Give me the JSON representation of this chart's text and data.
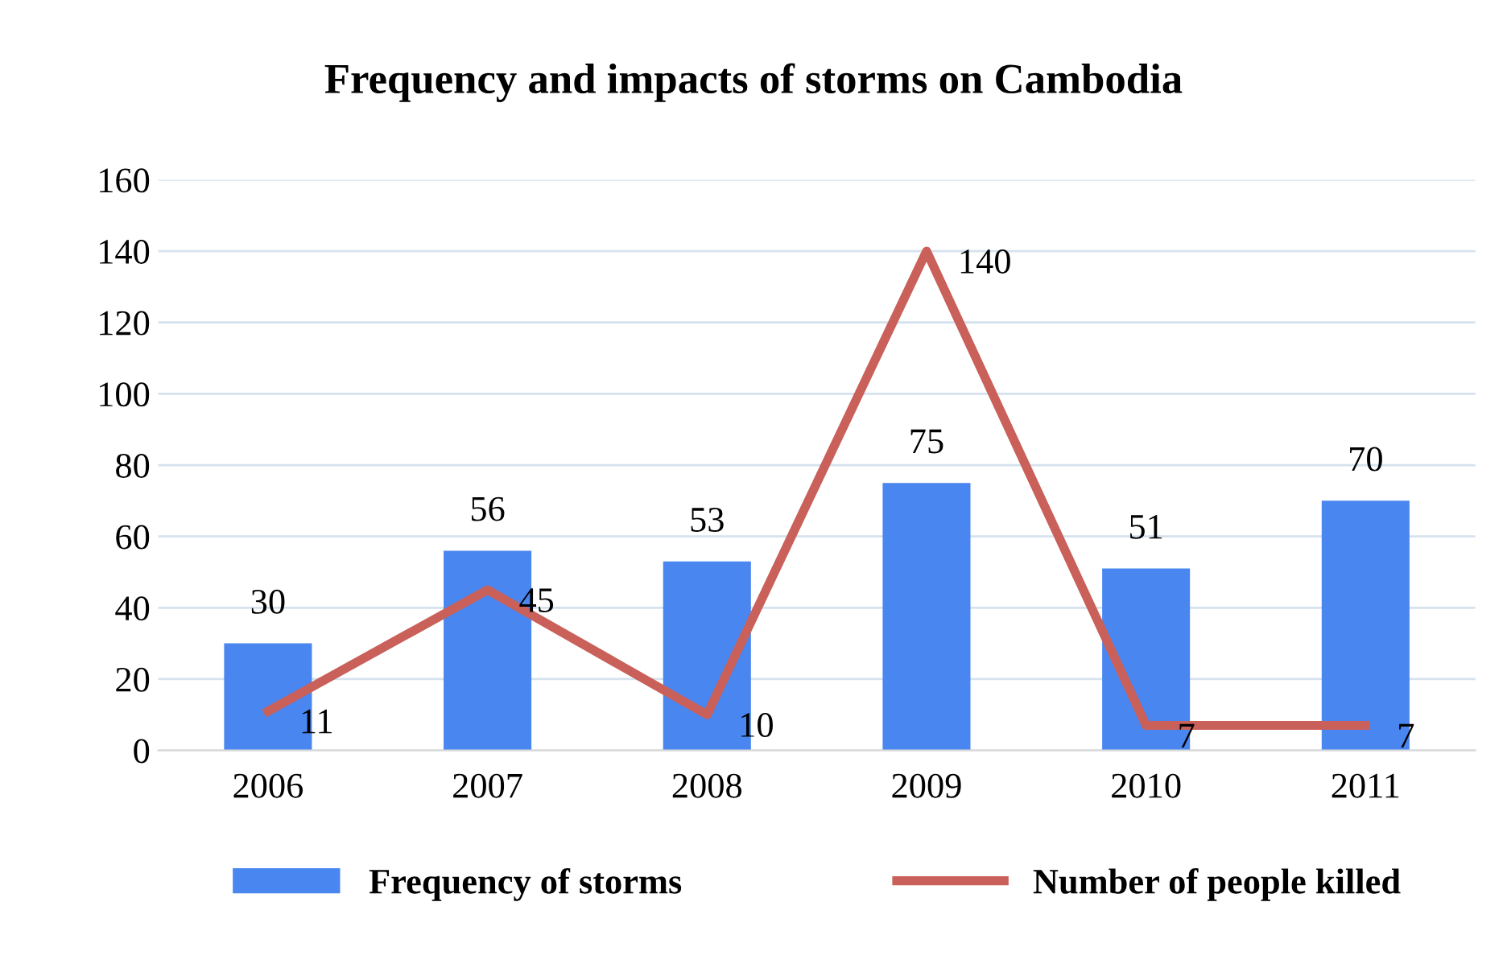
{
  "chart_data": {
    "type": "bar",
    "title": "Frequency and impacts of storms on Cambodia",
    "categories": [
      "2006",
      "2007",
      "2008",
      "2009",
      "2010",
      "2011"
    ],
    "series": [
      {
        "name": "Frequency of storms",
        "color": "#4a86f0",
        "values": [
          30,
          56,
          53,
          75,
          51,
          70
        ]
      },
      {
        "name": "Number of people killed",
        "type": "line",
        "color": "#c9605a",
        "values": [
          11,
          45,
          10,
          140,
          7,
          7
        ]
      }
    ],
    "ylim": [
      0,
      160
    ],
    "yticks": [
      0,
      20,
      40,
      60,
      80,
      100,
      120,
      140,
      160
    ],
    "grid": "y",
    "legend": "bottom",
    "data_labels": true,
    "marker": "none",
    "line_style": "solid"
  }
}
